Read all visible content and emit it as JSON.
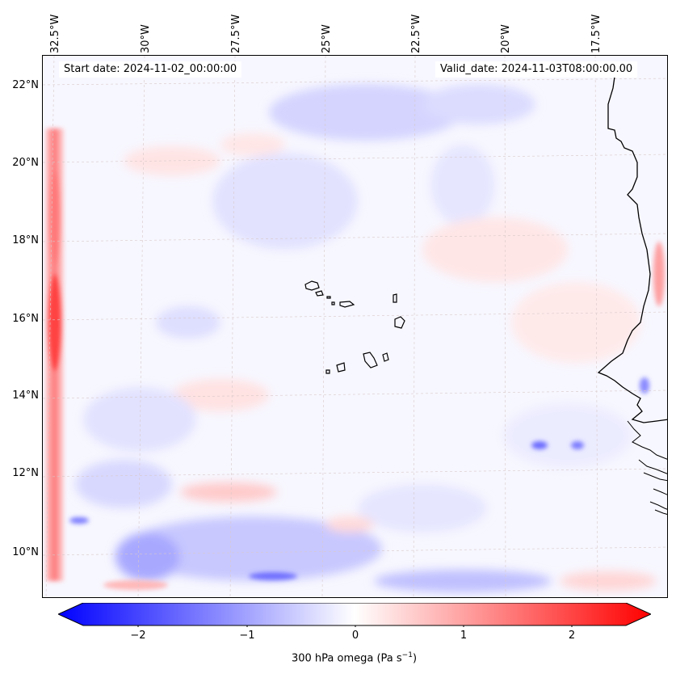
{
  "map": {
    "start_date": "Start date: 2024-11-02_00:00:00",
    "valid_date": "Valid_date: 2024-11-03T08:00:00.00",
    "lon_labels": [
      "32.5°W",
      "30°W",
      "27.5°W",
      "25°W",
      "22.5°W",
      "20°W",
      "17.5°W"
    ],
    "lat_labels": [
      "22°N",
      "20°N",
      "18°N",
      "16°N",
      "14°N",
      "12°N",
      "10°N"
    ],
    "coastline_color": "#000000",
    "features": [
      "Cape Verde islands",
      "West African coastline"
    ]
  },
  "colorbar": {
    "label_main": "300 hPa omega (Pa s",
    "label_sup": "−1",
    "label_end": ")",
    "ticks": [
      "−2",
      "−1",
      "0",
      "1",
      "2"
    ],
    "min": -2.7,
    "max": 2.7,
    "colormap": "bwr",
    "min_color": "#0000ff",
    "mid_color": "#ffffff",
    "max_color": "#ff0000"
  }
}
